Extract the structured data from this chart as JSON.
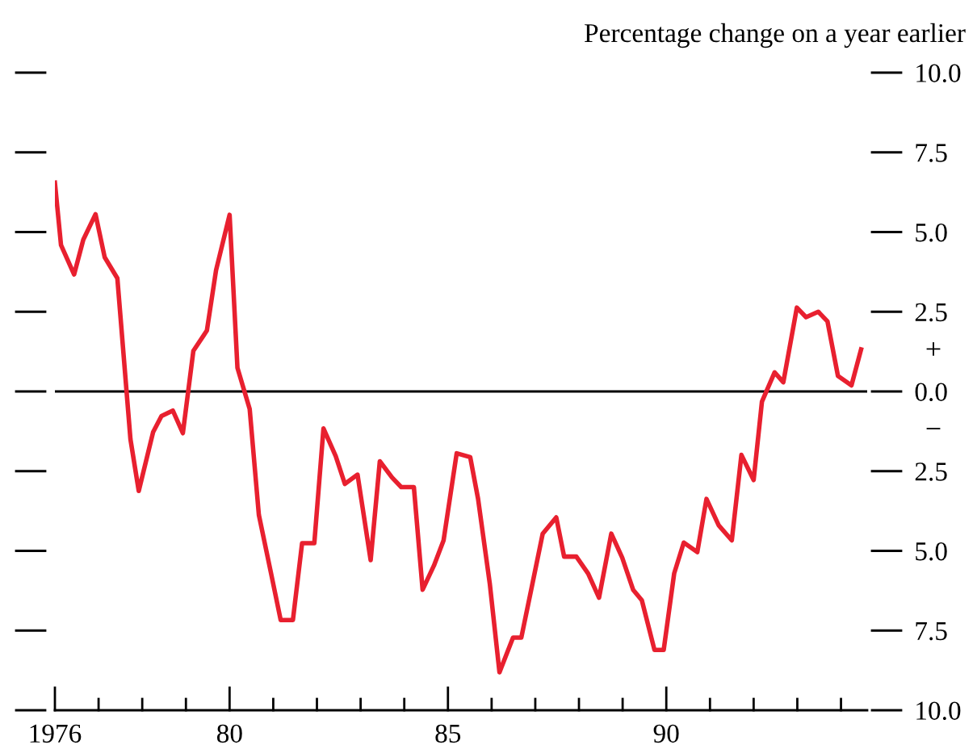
{
  "chart_data": {
    "type": "line",
    "ylabel": "Percentage change on a year earlier",
    "x": [
      1976.0,
      1976.14,
      1976.44,
      1976.65,
      1976.93,
      1977.14,
      1977.43,
      1977.73,
      1977.92,
      1978.25,
      1978.44,
      1978.7,
      1978.93,
      1979.17,
      1979.48,
      1979.69,
      1980.0,
      1980.18,
      1980.46,
      1980.67,
      1980.95,
      1981.17,
      1981.45,
      1981.66,
      1981.94,
      1982.15,
      1982.43,
      1982.64,
      1982.93,
      1983.23,
      1983.44,
      1983.72,
      1983.93,
      1984.22,
      1984.42,
      1984.68,
      1984.9,
      1985.2,
      1985.51,
      1985.69,
      1985.96,
      1986.18,
      1986.49,
      1986.68,
      1986.92,
      1987.17,
      1987.48,
      1987.66,
      1987.94,
      1988.21,
      1988.46,
      1988.74,
      1988.99,
      1989.24,
      1989.44,
      1989.73,
      1989.94,
      1990.18,
      1990.4,
      1990.71,
      1990.92,
      1991.2,
      1991.5,
      1991.72,
      1992.0,
      1992.19,
      1992.48,
      1992.68,
      1992.99,
      1993.2,
      1993.48,
      1993.69,
      1993.93,
      1994.24,
      1994.46
    ],
    "series": [
      {
        "color": "#e8202f",
        "values": [
          6.55,
          4.59,
          3.67,
          4.76,
          5.56,
          4.21,
          3.55,
          -1.5,
          -3.12,
          -1.27,
          -0.77,
          -0.6,
          -1.31,
          1.27,
          1.91,
          3.8,
          5.54,
          0.74,
          -0.55,
          -3.87,
          -5.71,
          -7.17,
          -7.17,
          -4.76,
          -4.76,
          -1.16,
          -2.03,
          -2.9,
          -2.61,
          -5.29,
          -2.19,
          -2.7,
          -3.0,
          -3.0,
          -6.22,
          -5.46,
          -4.67,
          -1.94,
          -2.06,
          -3.37,
          -6.05,
          -8.81,
          -7.72,
          -7.72,
          -6.13,
          -4.46,
          -3.95,
          -5.18,
          -5.18,
          -5.71,
          -6.47,
          -4.46,
          -5.21,
          -6.22,
          -6.55,
          -8.11,
          -8.11,
          -5.71,
          -4.74,
          -5.04,
          -3.37,
          -4.2,
          -4.67,
          -1.99,
          -2.78,
          -0.32,
          0.6,
          0.29,
          2.63,
          2.33,
          2.5,
          2.2,
          0.49,
          0.19,
          1.32
        ]
      }
    ],
    "xlim": [
      1976,
      1994.6
    ],
    "xticks": [
      {
        "value": 1976,
        "label": "1976"
      },
      {
        "value": 1977,
        "label": null
      },
      {
        "value": 1978,
        "label": null
      },
      {
        "value": 1979,
        "label": null
      },
      {
        "value": 1980,
        "label": "80"
      },
      {
        "value": 1981,
        "label": null
      },
      {
        "value": 1982,
        "label": null
      },
      {
        "value": 1983,
        "label": null
      },
      {
        "value": 1984,
        "label": null
      },
      {
        "value": 1985,
        "label": "85"
      },
      {
        "value": 1986,
        "label": null
      },
      {
        "value": 1987,
        "label": null
      },
      {
        "value": 1988,
        "label": null
      },
      {
        "value": 1989,
        "label": null
      },
      {
        "value": 1990,
        "label": "90"
      },
      {
        "value": 1991,
        "label": null
      },
      {
        "value": 1992,
        "label": null
      },
      {
        "value": 1993,
        "label": null
      },
      {
        "value": 1994,
        "label": null
      }
    ],
    "ylim": [
      -10,
      10
    ],
    "yticks": [
      {
        "value": 0,
        "label": "0.0"
      },
      {
        "value": 2.5,
        "label": "2.5"
      },
      {
        "value": 5,
        "label": "5.0"
      },
      {
        "value": 7.5,
        "label": "7.5"
      },
      {
        "value": 10,
        "label": "10.0"
      },
      {
        "value": -2.5,
        "label": "2.5"
      },
      {
        "value": -5,
        "label": "5.0"
      },
      {
        "value": -7.5,
        "label": "7.5"
      },
      {
        "value": -10,
        "label": "10.0"
      }
    ],
    "ref_lines": [
      {
        "axis": "y",
        "value": 0,
        "color": "#000000"
      }
    ],
    "annotations": [
      "+",
      "−"
    ],
    "grid": false,
    "legend": false
  }
}
